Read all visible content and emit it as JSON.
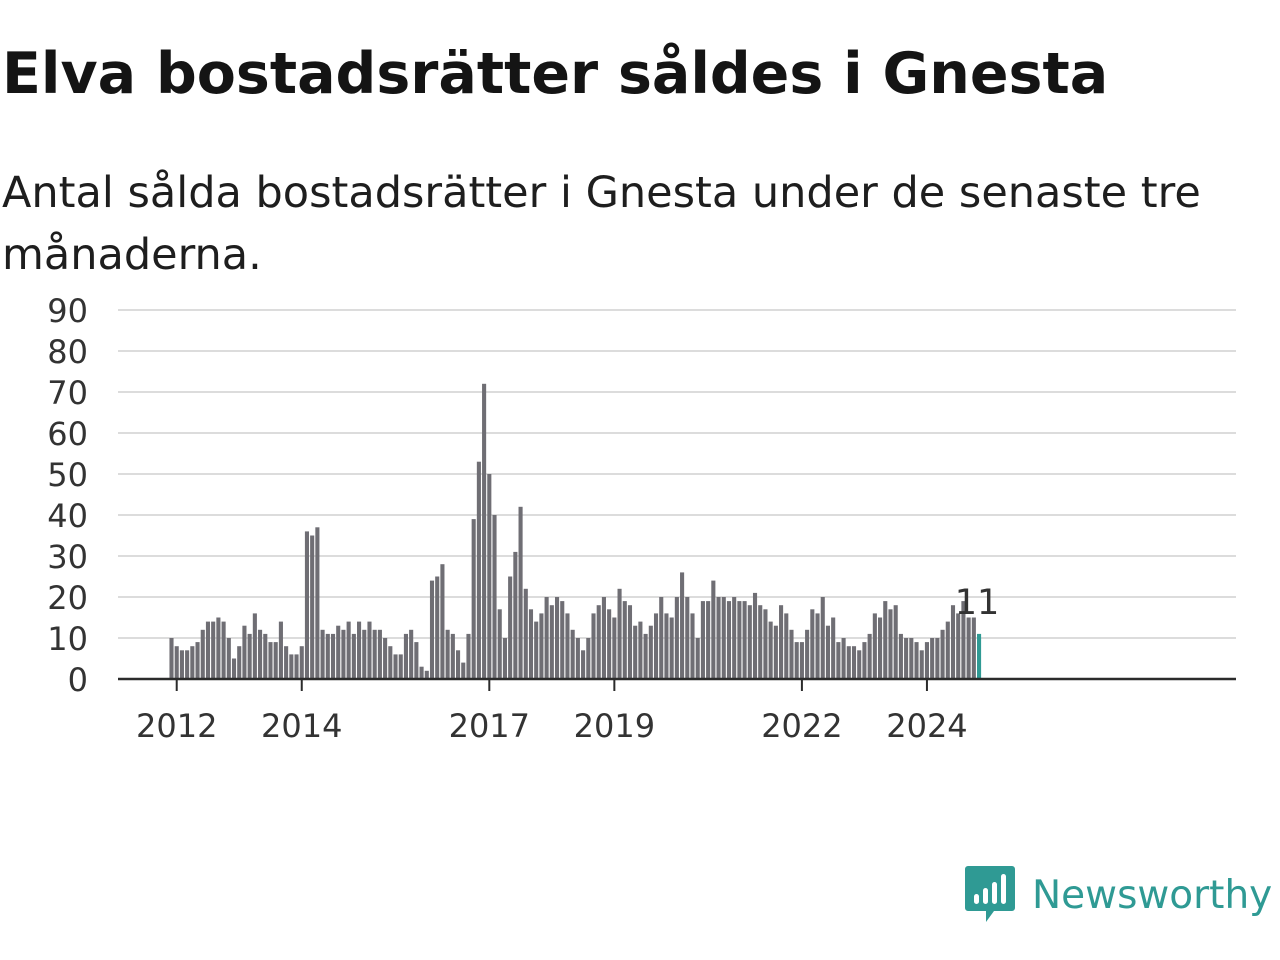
{
  "title": "Elva bostadsrätter såldes i Gnesta",
  "subtitle": "Antal sålda bostadsrätter i Gnesta under de senaste tre månaderna.",
  "brand": {
    "name": "Newsworthy",
    "color": "#2f9a94",
    "icon": "newsworthy-logo-icon"
  },
  "chart_data": {
    "type": "bar",
    "title": "Elva bostadsrätter såldes i Gnesta",
    "subtitle": "Antal sålda bostadsrätter i Gnesta under de senaste tre månaderna.",
    "ylim": [
      0,
      90
    ],
    "yticks": [
      0,
      10,
      20,
      30,
      40,
      50,
      60,
      70,
      80,
      90
    ],
    "grid": true,
    "x_start": "2011-12",
    "x_labels": [
      {
        "label": "2012",
        "index": 1
      },
      {
        "label": "2014",
        "index": 25
      },
      {
        "label": "2017",
        "index": 61
      },
      {
        "label": "2019",
        "index": 85
      },
      {
        "label": "2022",
        "index": 121
      },
      {
        "label": "2024",
        "index": 145
      }
    ],
    "values": [
      10,
      8,
      7,
      7,
      8,
      9,
      12,
      14,
      14,
      15,
      14,
      10,
      5,
      8,
      13,
      11,
      16,
      12,
      11,
      9,
      9,
      14,
      8,
      6,
      6,
      8,
      36,
      35,
      37,
      12,
      11,
      11,
      13,
      12,
      14,
      11,
      14,
      12,
      14,
      12,
      12,
      10,
      8,
      6,
      6,
      11,
      12,
      9,
      3,
      2,
      24,
      25,
      28,
      12,
      11,
      7,
      4,
      11,
      39,
      53,
      72,
      50,
      40,
      17,
      10,
      25,
      31,
      42,
      22,
      17,
      14,
      16,
      20,
      18,
      20,
      19,
      16,
      12,
      10,
      7,
      10,
      16,
      18,
      20,
      17,
      15,
      22,
      19,
      18,
      13,
      14,
      11,
      13,
      16,
      20,
      16,
      15,
      20,
      26,
      20,
      16,
      10,
      19,
      19,
      24,
      20,
      20,
      19,
      20,
      19,
      19,
      18,
      21,
      18,
      17,
      14,
      13,
      18,
      16,
      12,
      9,
      9,
      12,
      17,
      16,
      20,
      13,
      15,
      9,
      10,
      8,
      8,
      7,
      9,
      11,
      16,
      15,
      19,
      17,
      18,
      11,
      10,
      10,
      9,
      7,
      9,
      10,
      10,
      12,
      14,
      18,
      16,
      19,
      15,
      15,
      11
    ],
    "bar_color": "#6f6e74",
    "highlight_color": "#2f9a94",
    "highlight_last": true,
    "last_value_label": "11"
  }
}
